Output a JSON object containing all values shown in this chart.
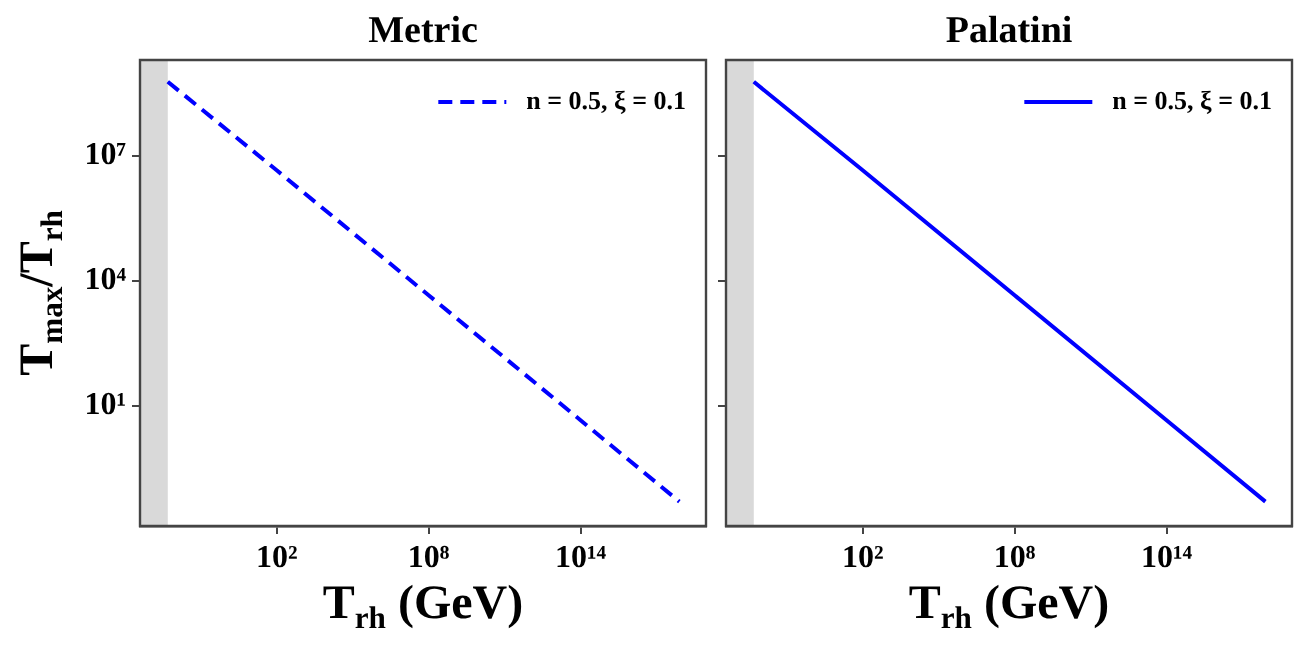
{
  "chart_data": [
    {
      "type": "line",
      "title": "Metric",
      "xlabel": "T$_{rh}$ (GeV)",
      "ylabel": "T$_{max}$/T$_{rh}$",
      "x": [
        0.005,
        100,
        100000000.0,
        100000000000000.0,
        8e+17
      ],
      "series": [
        {
          "name": "n = 0.5, ξ = 0.1",
          "color": "#0000ff",
          "values": [
            600000000,
            4500000,
            4500,
            4.5,
            0.05
          ]
        }
      ],
      "line_style": "dashed",
      "marker": "none",
      "log": "xy",
      "grid": false,
      "legend": "top right",
      "xlim": [
        0.0004,
        9e+18
      ],
      "xticks": [
        {
          "value": 100,
          "label": "10²"
        },
        {
          "value": 100000000.0,
          "label": "10⁸"
        },
        {
          "value": 100000000000000.0,
          "label": "10¹⁴"
        }
      ],
      "ylim": [
        0.013,
        2000000000
      ],
      "yticks": [
        {
          "value": 10000000,
          "label": "10⁷"
        },
        {
          "value": 10000,
          "label": "10⁴"
        },
        {
          "value": 10,
          "label": "10¹"
        }
      ],
      "bands": [
        {
          "axis": "x",
          "from": 0.0004,
          "to": 0.005,
          "color": "#d9d9d9"
        }
      ]
    },
    {
      "type": "line",
      "title": "Palatini",
      "xlabel": "T$_{rh}$ (GeV)",
      "x": [
        0.005,
        100,
        100000000.0,
        100000000000000.0,
        8e+17
      ],
      "series": [
        {
          "name": "n = 0.5, ξ = 0.1",
          "color": "#0000ff",
          "values": [
            600000000,
            4500000,
            4500,
            4.5,
            0.05
          ]
        }
      ],
      "line_style": "solid",
      "marker": "none",
      "log": "xy",
      "grid": false,
      "legend": "top right",
      "tick_labels": "x",
      "xlim": [
        0.0004,
        9e+18
      ],
      "xticks": [
        {
          "value": 100,
          "label": "10²"
        },
        {
          "value": 100000000.0,
          "label": "10⁸"
        },
        {
          "value": 100000000000000.0,
          "label": "10¹⁴"
        }
      ],
      "ylim": [
        0.013,
        2000000000
      ],
      "yticks": [
        {
          "value": 10000000,
          "label": null
        },
        {
          "value": 10000,
          "label": null
        },
        {
          "value": 10,
          "label": null
        }
      ],
      "bands": [
        {
          "axis": "x",
          "from": 0.0004,
          "to": 0.005,
          "color": "#d9d9d9"
        }
      ]
    }
  ]
}
